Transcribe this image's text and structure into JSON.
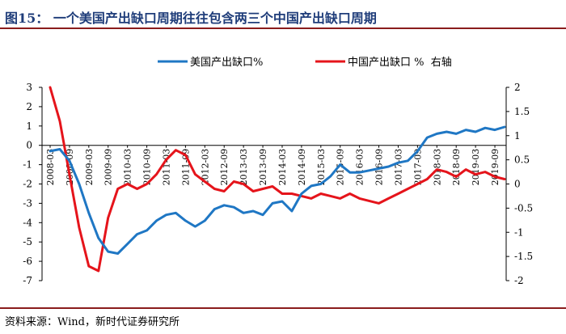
{
  "header": {
    "title": "图15：  一个美国产出缺口周期往往包含两三个中国产出缺口周期"
  },
  "footer": {
    "source": "资料来源：Wind，新时代证券研究所"
  },
  "colors": {
    "us": "#1f77c4",
    "cn": "#e5141b",
    "title": "#1f3d7a",
    "rule": "#8a1c1c"
  },
  "chart_data": {
    "type": "line",
    "title": "一个美国产出缺口周期往往包含两三个中国产出缺口周期",
    "legend_position": "top",
    "x_tick_labels": [
      "2008-03",
      "2008-09",
      "2009-03",
      "2009-09",
      "2010-03",
      "2010-09",
      "2011-03",
      "2011-09",
      "2012-03",
      "2012-09",
      "2013-03",
      "2013-09",
      "2014-03",
      "2014-09",
      "2015-03",
      "2015-09",
      "2016-03",
      "2016-09",
      "2017-03",
      "2017-09",
      "2018-03",
      "2018-09",
      "2019-03",
      "2019-09"
    ],
    "left_axis": {
      "min": -7,
      "max": 3,
      "ticks": [
        "3",
        "2",
        "1",
        "0",
        "-1",
        "-2",
        "-3",
        "-4",
        "-5",
        "-6",
        "-7"
      ]
    },
    "right_axis": {
      "min": -2,
      "max": 2,
      "ticks": [
        "2",
        "1.5",
        "1",
        "0.5",
        "0",
        "-0.5",
        "-1",
        "-1.5",
        "-2"
      ]
    },
    "series": [
      {
        "name": "美国产出缺口%",
        "axis": "left",
        "color": "#1f77c4",
        "x": [
          0,
          1,
          2,
          3,
          4,
          5,
          6,
          7,
          8,
          9,
          10,
          11,
          12,
          13,
          14,
          15,
          16,
          17,
          18,
          19,
          20,
          21,
          22,
          23,
          24,
          25,
          26,
          27,
          28,
          29,
          30,
          31,
          32,
          33,
          34,
          35,
          36,
          37,
          38,
          39,
          40,
          41,
          42,
          43,
          44,
          45,
          46,
          47
        ],
        "values": [
          -0.3,
          -0.2,
          -0.8,
          -2.0,
          -3.5,
          -4.8,
          -5.5,
          -5.6,
          -5.1,
          -4.6,
          -4.4,
          -3.9,
          -3.6,
          -3.5,
          -3.9,
          -4.2,
          -3.9,
          -3.3,
          -3.1,
          -3.2,
          -3.5,
          -3.4,
          -3.6,
          -3.0,
          -2.9,
          -3.4,
          -2.5,
          -2.1,
          -2.0,
          -1.6,
          -1.0,
          -1.4,
          -1.4,
          -1.3,
          -1.2,
          -1.1,
          -0.9,
          -0.8,
          -0.3,
          0.4,
          0.6,
          0.7,
          0.6,
          0.8,
          0.7,
          0.9,
          0.8,
          0.95
        ]
      },
      {
        "name": "中国产出缺口 %  右轴",
        "axis": "right",
        "color": "#e5141b",
        "x": [
          0,
          1,
          2,
          3,
          4,
          5,
          6,
          7,
          8,
          9,
          10,
          11,
          12,
          13,
          14,
          15,
          16,
          17,
          18,
          19,
          20,
          21,
          22,
          23,
          24,
          25,
          26,
          27,
          28,
          29,
          30,
          31,
          32,
          33,
          34,
          35,
          36,
          37,
          38,
          39,
          40,
          41,
          42,
          43,
          44,
          45,
          46,
          47
        ],
        "values": [
          2.0,
          1.3,
          0.2,
          -0.9,
          -1.7,
          -1.8,
          -0.7,
          -0.1,
          0.0,
          -0.1,
          0.0,
          0.2,
          0.5,
          0.7,
          0.6,
          0.2,
          0.05,
          -0.1,
          -0.15,
          0.05,
          0.0,
          -0.15,
          -0.1,
          -0.05,
          -0.2,
          -0.2,
          -0.25,
          -0.3,
          -0.2,
          -0.25,
          -0.3,
          -0.2,
          -0.3,
          -0.35,
          -0.4,
          -0.3,
          -0.2,
          -0.1,
          0.0,
          0.1,
          0.3,
          0.25,
          0.15,
          0.3,
          0.2,
          0.25,
          0.15,
          0.1
        ]
      }
    ]
  }
}
